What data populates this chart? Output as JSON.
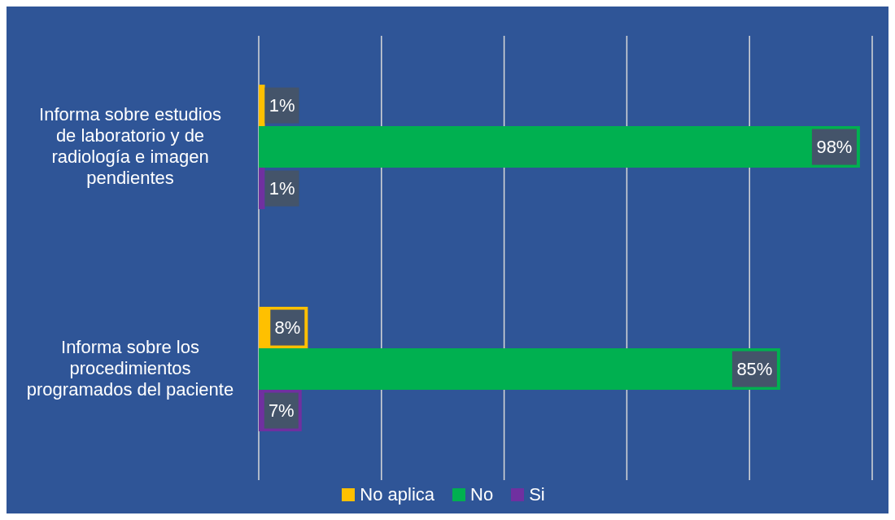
{
  "chart_data": {
    "type": "bar",
    "orientation": "horizontal",
    "categories": [
      "Informa sobre estudios de laboratorio y de radiología e imagen pendientes",
      "Informa sobre los procedimientos programados del paciente"
    ],
    "series": [
      {
        "name": "No aplica",
        "color": "#ffc000",
        "values": [
          1,
          8
        ],
        "value_labels": [
          "1%",
          "8%"
        ]
      },
      {
        "name": "No",
        "color": "#00b050",
        "values": [
          98,
          85
        ],
        "value_labels": [
          "98%",
          "85%"
        ]
      },
      {
        "name": "Si",
        "color": "#7030a0",
        "values": [
          1,
          7
        ],
        "value_labels": [
          "1%",
          "7%"
        ]
      }
    ],
    "xlim": [
      0,
      100
    ],
    "xticks": [
      {
        "value": 0,
        "label": null
      },
      {
        "value": 20,
        "label": null
      },
      {
        "value": 40,
        "label": null
      },
      {
        "value": 60,
        "label": null
      },
      {
        "value": 80,
        "label": null
      },
      {
        "value": 100,
        "label": null
      }
    ],
    "grid": "x",
    "legend": "bottom",
    "tick_labels": "y"
  }
}
